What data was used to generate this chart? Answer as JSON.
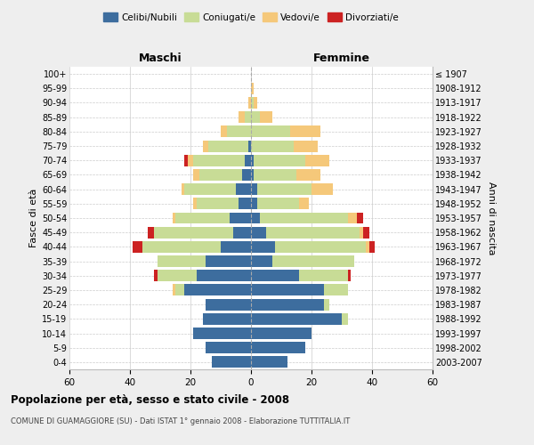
{
  "age_groups": [
    "0-4",
    "5-9",
    "10-14",
    "15-19",
    "20-24",
    "25-29",
    "30-34",
    "35-39",
    "40-44",
    "45-49",
    "50-54",
    "55-59",
    "60-64",
    "65-69",
    "70-74",
    "75-79",
    "80-84",
    "85-89",
    "90-94",
    "95-99",
    "100+"
  ],
  "birth_years": [
    "2003-2007",
    "1998-2002",
    "1993-1997",
    "1988-1992",
    "1983-1987",
    "1978-1982",
    "1973-1977",
    "1968-1972",
    "1963-1967",
    "1958-1962",
    "1953-1957",
    "1948-1952",
    "1943-1947",
    "1938-1942",
    "1933-1937",
    "1928-1932",
    "1923-1927",
    "1918-1922",
    "1913-1917",
    "1908-1912",
    "≤ 1907"
  ],
  "males": {
    "celibi": [
      13,
      15,
      19,
      16,
      15,
      22,
      18,
      15,
      10,
      6,
      7,
      4,
      5,
      3,
      2,
      1,
      0,
      0,
      0,
      0,
      0
    ],
    "coniugati": [
      0,
      0,
      0,
      0,
      0,
      3,
      13,
      16,
      26,
      26,
      18,
      14,
      17,
      14,
      17,
      13,
      8,
      2,
      0,
      0,
      0
    ],
    "vedovi": [
      0,
      0,
      0,
      0,
      0,
      1,
      0,
      0,
      0,
      0,
      1,
      1,
      1,
      2,
      2,
      2,
      2,
      2,
      1,
      0,
      0
    ],
    "divorziati": [
      0,
      0,
      0,
      0,
      0,
      0,
      1,
      0,
      3,
      2,
      0,
      0,
      0,
      0,
      1,
      0,
      0,
      0,
      0,
      0,
      0
    ]
  },
  "females": {
    "nubili": [
      12,
      18,
      20,
      30,
      24,
      24,
      16,
      7,
      8,
      5,
      3,
      2,
      2,
      1,
      1,
      0,
      0,
      0,
      0,
      0,
      0
    ],
    "coniugate": [
      0,
      0,
      0,
      2,
      2,
      8,
      16,
      27,
      30,
      31,
      29,
      14,
      18,
      14,
      17,
      14,
      13,
      3,
      1,
      0,
      0
    ],
    "vedove": [
      0,
      0,
      0,
      0,
      0,
      0,
      0,
      0,
      1,
      1,
      3,
      3,
      7,
      8,
      8,
      8,
      10,
      4,
      1,
      1,
      0
    ],
    "divorziate": [
      0,
      0,
      0,
      0,
      0,
      0,
      1,
      0,
      2,
      2,
      2,
      0,
      0,
      0,
      0,
      0,
      0,
      0,
      0,
      0,
      0
    ]
  },
  "colors": {
    "celibi": "#3d6d9e",
    "coniugati": "#c8dc96",
    "vedovi": "#f5c87a",
    "divorziati": "#cc2222"
  },
  "xlim": 60,
  "title": "Popolazione per età, sesso e stato civile - 2008",
  "subtitle": "COMUNE DI GUAMAGGIORE (SU) - Dati ISTAT 1° gennaio 2008 - Elaborazione TUTTITALIA.IT",
  "ylabel_left": "Fasce di età",
  "ylabel_right": "Anni di nascita",
  "xlabel_left": "Maschi",
  "xlabel_right": "Femmine",
  "bg_color": "#eeeeee",
  "plot_bg": "#ffffff",
  "grid_color": "#cccccc"
}
